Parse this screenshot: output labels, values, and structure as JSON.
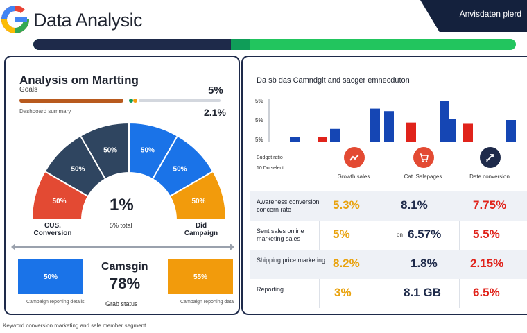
{
  "header": {
    "app_title": "Data Analysic",
    "corner_badge": "Anvisdaten plerd",
    "progress": {
      "navy_fraction": 0.41,
      "teal_fraction": 0.02
    }
  },
  "left_panel": {
    "title": "Analysis om Martting",
    "subtitle": "Goals",
    "percent_top": "5%",
    "slider_caption": "Dashboard summary",
    "percent_mid": "2.1%",
    "gauge": {
      "segments": [
        {
          "label": "50%",
          "color": "#2f4560"
        },
        {
          "label": "50%",
          "color": "#1a73e8"
        },
        {
          "label": "50%",
          "color": "#2f4560"
        },
        {
          "label": "50%",
          "color": "#1a73e8"
        },
        {
          "label": "50%",
          "color": "#e34a33"
        },
        {
          "label": "50%",
          "color": "#f29b0c"
        }
      ],
      "center_value": "1%",
      "center_sub": "5% total",
      "left_label": "CUS. Conversion",
      "right_label": "Did Campaign"
    },
    "boxes": {
      "blue_value": "50%",
      "blue_caption": "Campaign reporting details",
      "orange_value": "55%",
      "orange_caption": "Campaign reporting data"
    },
    "campaign": {
      "title": "Camsgin",
      "value": "78%",
      "caption": "Grab status"
    }
  },
  "right_panel": {
    "title": "Da sb das Camndgit and sacger emnecduton",
    "axis_labels": [
      "5%",
      "5%",
      "5%"
    ],
    "axis_note": "Budget ratio",
    "axis_note2": "10 Do select",
    "bars": [
      {
        "value": 0.35,
        "color": "#1546b4"
      },
      {
        "value": 0.35,
        "color": "#e0231b"
      },
      {
        "value": 1.0,
        "color": "#1546b4"
      },
      {
        "value": 2.6,
        "color": "#1546b4"
      },
      {
        "value": 2.4,
        "color": "#1546b4"
      },
      {
        "value": 1.5,
        "color": "#e0231b"
      },
      {
        "value": 3.2,
        "color": "#1546b4"
      },
      {
        "value": 1.8,
        "color": "#1546b4"
      },
      {
        "value": 1.4,
        "color": "#e0231b"
      },
      {
        "value": 1.7,
        "color": "#1546b4"
      }
    ],
    "icons": [
      {
        "name": "chart-icon",
        "color": "#e34a33",
        "caption": "Growth sales"
      },
      {
        "name": "cart-icon",
        "color": "#e34a33",
        "caption": "Cat. Salepages"
      },
      {
        "name": "rocket-icon",
        "color": "#1e2a4a",
        "caption": "Date conversion"
      }
    ],
    "table": [
      {
        "label": "Awareness conversion concern rate",
        "a": "5.3%",
        "a_color": "#e9a20d",
        "b": "8.1%",
        "b_color": "#1e2a4a",
        "c": "7.75%",
        "c_color": "#e0231b",
        "c_prefix": "+"
      },
      {
        "label": "Sent sales online marketing sales",
        "a": "5%",
        "a_color": "#e9a20d",
        "b_prefix": "on",
        "b": "6.57%",
        "b_color": "#1e2a4a",
        "c": "5.5%",
        "c_color": "#e0231b",
        "c_prefix": "+"
      },
      {
        "label": "Shipping price marketing",
        "a": "8.2%",
        "a_color": "#e9a20d",
        "b": "1.8%",
        "b_color": "#1e2a4a",
        "c": "2.15%",
        "c_color": "#e0231b",
        "c_prefix": ""
      },
      {
        "label": "Reporting",
        "a": "3%",
        "a_color": "#e9a20d",
        "b": "8.1 GB",
        "b_color": "#1e2a4a",
        "c": "6.5%",
        "c_color": "#e0231b",
        "c_prefix": ""
      }
    ]
  },
  "footer": {
    "text": "Keyword conversion marketing and sale member segment"
  }
}
